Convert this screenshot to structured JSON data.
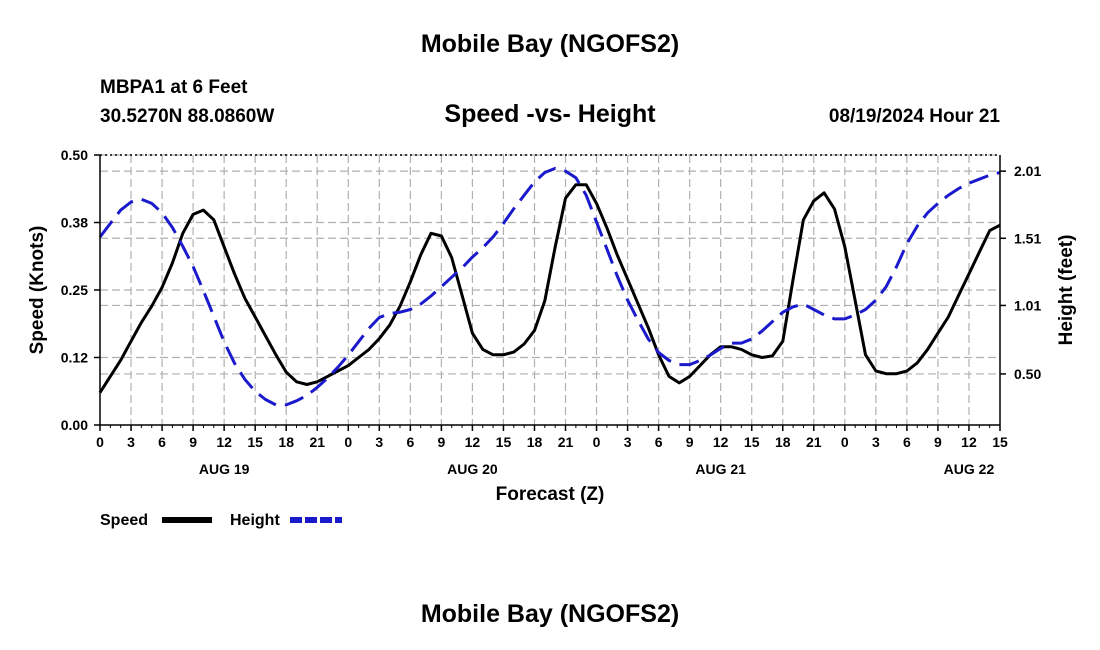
{
  "header": {
    "title": "Mobile Bay (NGOFS2)",
    "station": "MBPA1 at 6 Feet",
    "coords": "30.5270N  88.0860W",
    "chart_title": "Speed -vs- Height",
    "forecast_time": "08/19/2024 Hour 21"
  },
  "footer": {
    "title": "Mobile Bay (NGOFS2)"
  },
  "colors": {
    "speed": "#000000",
    "height": "#1a1acc",
    "grid": "#b0b0b0"
  },
  "chart_data": {
    "type": "line",
    "title": "Speed -vs- Height",
    "xlabel": "Forecast (Z)",
    "ylabel": "Speed (Knots)",
    "y2label": "Height (feet)",
    "xlim": [
      0,
      87
    ],
    "ylim": [
      0,
      0.5
    ],
    "y2lim": [
      0.12,
      2.13
    ],
    "grid": true,
    "legend_position": "bottom-left",
    "x_ticks": [
      0,
      3,
      6,
      9,
      12,
      15,
      18,
      21,
      24,
      27,
      30,
      33,
      36,
      39,
      42,
      45,
      48,
      51,
      54,
      57,
      60,
      63,
      66,
      69,
      72,
      75,
      78,
      81,
      84,
      87
    ],
    "x_tick_labels": [
      "0",
      "3",
      "6",
      "9",
      "12",
      "15",
      "18",
      "21",
      "0",
      "3",
      "6",
      "9",
      "12",
      "15",
      "18",
      "21",
      "0",
      "3",
      "6",
      "9",
      "12",
      "15",
      "18",
      "21",
      "0",
      "3",
      "6",
      "9",
      "12",
      "15"
    ],
    "date_labels": [
      {
        "x": 12,
        "label": "AUG 19"
      },
      {
        "x": 36,
        "label": "AUG 20"
      },
      {
        "x": 60,
        "label": "AUG 21"
      },
      {
        "x": 84,
        "label": "AUG 22"
      }
    ],
    "y_ticks": [
      0,
      0.125,
      0.25,
      0.375,
      0.5
    ],
    "y_tick_labels": [
      "0.00",
      "0.12",
      "0.25",
      "0.38",
      "0.50"
    ],
    "y2_ticks": [
      0.5,
      1.01,
      1.51,
      2.01
    ],
    "y2_tick_labels": [
      "0.50",
      "1.01",
      "1.51",
      "2.01"
    ],
    "series": [
      {
        "name": "Speed",
        "axis": "left",
        "style": "solid",
        "x": [
          0,
          1,
          2,
          3,
          4,
          5,
          6,
          7,
          8,
          9,
          10,
          11,
          12,
          13,
          14,
          15,
          16,
          17,
          18,
          19,
          20,
          21,
          22,
          23,
          24,
          25,
          26,
          27,
          28,
          29,
          30,
          31,
          32,
          33,
          34,
          35,
          36,
          37,
          38,
          39,
          40,
          41,
          42,
          43,
          44,
          45,
          46,
          47,
          48,
          49,
          50,
          51,
          52,
          53,
          54,
          55,
          56,
          57,
          58,
          59,
          60,
          61,
          62,
          63,
          64,
          65,
          66,
          67,
          68,
          69,
          70,
          71,
          72,
          73,
          74,
          75,
          76,
          77,
          78,
          79,
          80,
          81,
          82,
          83,
          84,
          85,
          86,
          87
        ],
        "values": [
          0.06,
          0.09,
          0.12,
          0.155,
          0.19,
          0.22,
          0.255,
          0.3,
          0.355,
          0.39,
          0.398,
          0.38,
          0.33,
          0.28,
          0.235,
          0.2,
          0.165,
          0.13,
          0.098,
          0.08,
          0.075,
          0.08,
          0.09,
          0.1,
          0.11,
          0.125,
          0.14,
          0.16,
          0.185,
          0.22,
          0.265,
          0.315,
          0.355,
          0.35,
          0.31,
          0.24,
          0.17,
          0.14,
          0.13,
          0.13,
          0.135,
          0.15,
          0.175,
          0.23,
          0.33,
          0.42,
          0.445,
          0.445,
          0.41,
          0.365,
          0.315,
          0.27,
          0.225,
          0.18,
          0.13,
          0.09,
          0.078,
          0.09,
          0.11,
          0.13,
          0.145,
          0.145,
          0.14,
          0.13,
          0.125,
          0.128,
          0.155,
          0.27,
          0.38,
          0.415,
          0.43,
          0.4,
          0.33,
          0.23,
          0.13,
          0.1,
          0.095,
          0.095,
          0.1,
          0.115,
          0.14,
          0.17,
          0.2,
          0.24,
          0.28,
          0.32,
          0.36,
          0.37
        ]
      },
      {
        "name": "Height",
        "axis": "right",
        "style": "dashed",
        "x": [
          0,
          1,
          2,
          3,
          4,
          5,
          6,
          7,
          8,
          9,
          10,
          11,
          12,
          13,
          14,
          15,
          16,
          17,
          18,
          19,
          20,
          21,
          22,
          23,
          24,
          25,
          26,
          27,
          28,
          29,
          30,
          31,
          32,
          33,
          34,
          35,
          36,
          37,
          38,
          39,
          40,
          41,
          42,
          43,
          44,
          45,
          46,
          47,
          48,
          49,
          50,
          51,
          52,
          53,
          54,
          55,
          56,
          57,
          58,
          59,
          60,
          61,
          62,
          63,
          64,
          65,
          66,
          67,
          68,
          69,
          70,
          71,
          72,
          73,
          74,
          75,
          76,
          77,
          78,
          79,
          80,
          81,
          82,
          83,
          84,
          85,
          86,
          87
        ],
        "values": [
          1.52,
          1.62,
          1.72,
          1.78,
          1.8,
          1.77,
          1.7,
          1.59,
          1.45,
          1.3,
          1.12,
          0.93,
          0.74,
          0.58,
          0.46,
          0.37,
          0.31,
          0.27,
          0.27,
          0.3,
          0.34,
          0.4,
          0.47,
          0.55,
          0.64,
          0.74,
          0.84,
          0.92,
          0.95,
          0.96,
          0.98,
          1.02,
          1.08,
          1.15,
          1.22,
          1.29,
          1.37,
          1.44,
          1.52,
          1.62,
          1.73,
          1.83,
          1.93,
          2.0,
          2.03,
          2.01,
          1.96,
          1.83,
          1.63,
          1.43,
          1.23,
          1.05,
          0.9,
          0.76,
          0.66,
          0.6,
          0.57,
          0.57,
          0.6,
          0.64,
          0.69,
          0.73,
          0.73,
          0.76,
          0.82,
          0.89,
          0.96,
          1.0,
          1.02,
          0.98,
          0.94,
          0.91,
          0.91,
          0.94,
          0.98,
          1.05,
          1.15,
          1.3,
          1.47,
          1.6,
          1.7,
          1.77,
          1.83,
          1.88,
          1.92,
          1.95,
          1.98,
          2.0
        ]
      }
    ]
  }
}
